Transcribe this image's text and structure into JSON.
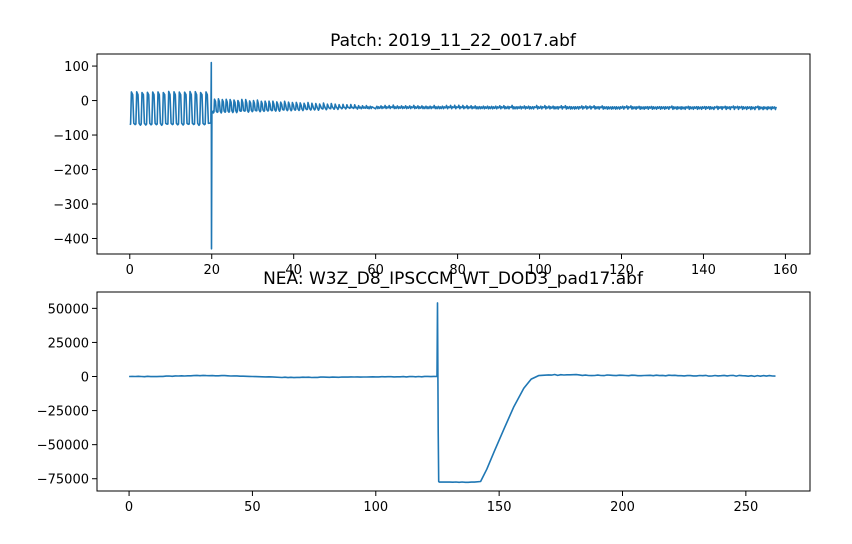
{
  "chart_data": [
    {
      "type": "line",
      "title": "Patch: 2019_11_22_0017.abf",
      "xlabel": "",
      "ylabel": "",
      "xlim": [
        -8,
        166
      ],
      "ylim": [
        -445,
        135
      ],
      "xticks": [
        0,
        20,
        40,
        60,
        80,
        100,
        120,
        140,
        160
      ],
      "yticks": [
        100,
        0,
        -100,
        -200,
        -300,
        -400
      ],
      "xtick_labels": [
        "0",
        "20",
        "40",
        "60",
        "80",
        "100",
        "120",
        "140",
        "160"
      ],
      "ytick_labels": [
        "100",
        "0",
        "−100",
        "−200",
        "−300",
        "−400"
      ],
      "grid": false,
      "series": [
        {
          "color": "#1f77b4",
          "segments": [
            {
              "x_start": 0,
              "x_end": 19.8,
              "cycle_period": 1.3,
              "low": -70,
              "high": 25
            },
            {
              "x_start": 20.4,
              "x_end": 60,
              "cycle_period": 0.95,
              "low_start": -35,
              "low_end": -22,
              "high_start": 5,
              "high_end": -15
            },
            {
              "x_start": 60,
              "x_end": 158,
              "cycle_period": 1.0,
              "low_start": -22,
              "low_end": -22,
              "high_start": -15,
              "high_end": -18
            }
          ],
          "spike": {
            "x": 19.9,
            "points": [
              [
                19.8,
                -65
              ],
              [
                19.9,
                110
              ],
              [
                19.95,
                -430
              ],
              [
                20.05,
                -35
              ],
              [
                20.4,
                -30
              ]
            ]
          }
        }
      ]
    },
    {
      "type": "line",
      "title": "NEA: W3Z_D8_IPSCCM_WT_DOD3_pad17.abf",
      "xlabel": "",
      "ylabel": "",
      "xlim": [
        -13,
        276
      ],
      "ylim": [
        -84000,
        62000
      ],
      "xticks": [
        0,
        50,
        100,
        150,
        200,
        250
      ],
      "yticks": [
        50000,
        25000,
        0,
        -25000,
        -50000,
        -75000
      ],
      "xtick_labels": [
        "0",
        "50",
        "100",
        "150",
        "200",
        "250"
      ],
      "ytick_labels": [
        "50000",
        "25000",
        "0",
        "−25000",
        "−50000",
        "−75000"
      ],
      "grid": false,
      "series": [
        {
          "color": "#1f77b4",
          "x": [
            0,
            10,
            20,
            30,
            40,
            50,
            58,
            62,
            80,
            100,
            124.8,
            125.0,
            125.3,
            125.5,
            125.8,
            130,
            140,
            142.5,
            145,
            148,
            152,
            156,
            160,
            163,
            166,
            170,
            185,
            200,
            220,
            240,
            262
          ],
          "y": [
            0,
            0,
            400,
            800,
            500,
            0,
            -300,
            -700,
            -500,
            -300,
            0,
            54000,
            -40000,
            -77000,
            -77500,
            -77500,
            -77500,
            -77000,
            -68000,
            -55000,
            -38000,
            -22000,
            -9000,
            -2000,
            800,
            1200,
            1000,
            900,
            800,
            600,
            300
          ],
          "noise_amplitude_after": 700
        }
      ]
    }
  ]
}
